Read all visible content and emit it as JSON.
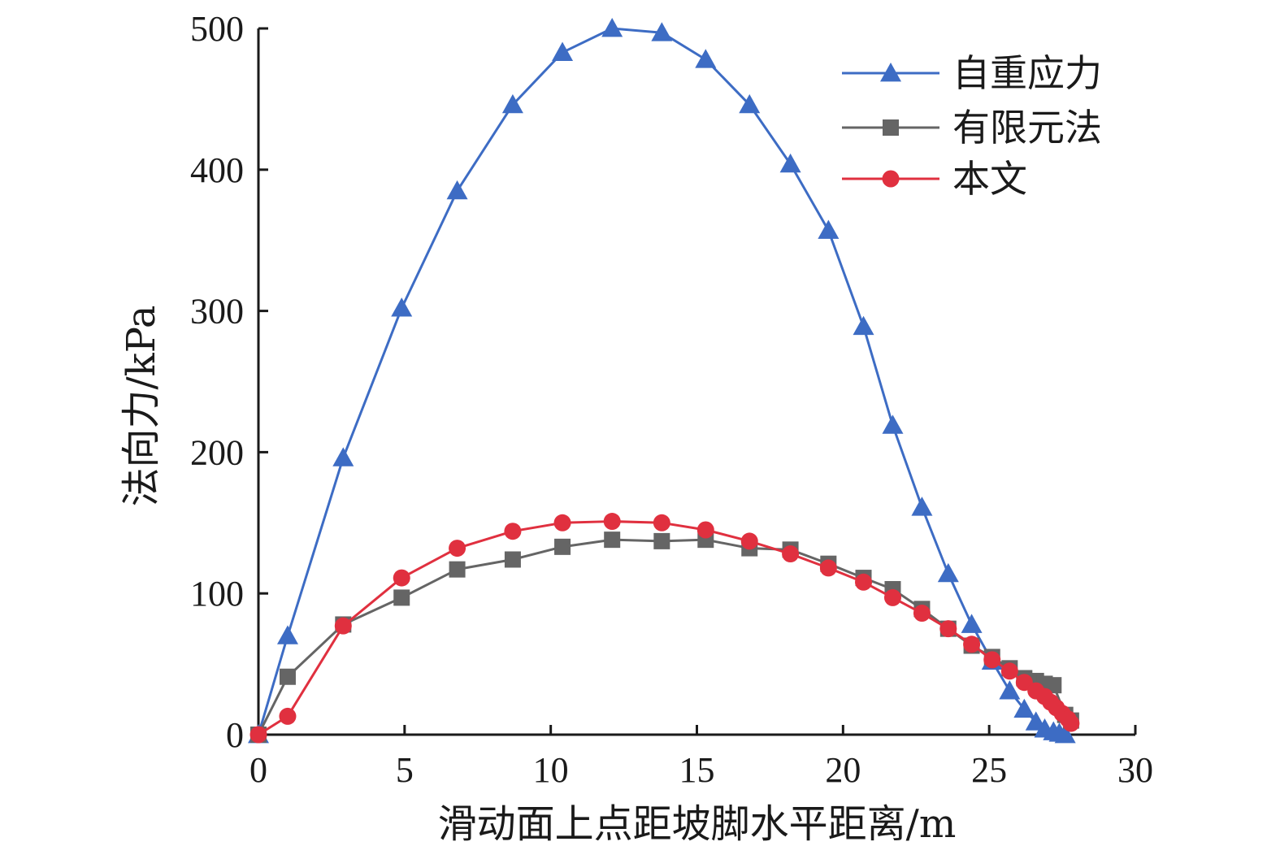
{
  "chart_data": {
    "type": "line",
    "xlabel": "滑动面上点距坡脚水平距离/m",
    "ylabel": "法向力/kPa",
    "xlim": [
      0,
      30
    ],
    "ylim": [
      0,
      500
    ],
    "xticks": [
      0,
      5,
      10,
      15,
      20,
      25,
      30
    ],
    "yticks": [
      0,
      100,
      200,
      300,
      400,
      500
    ],
    "xtick_labels": [
      "0",
      "5",
      "10",
      "15",
      "20",
      "25",
      "30"
    ],
    "ytick_labels": [
      "0",
      "100",
      "200",
      "300",
      "400",
      "500"
    ],
    "grid": false,
    "legend_position": "top-right",
    "series": [
      {
        "name": "自重应力",
        "color": "#3d6cc4",
        "marker": "triangle",
        "x": [
          0,
          1.0,
          2.9,
          4.9,
          6.8,
          8.7,
          10.4,
          12.1,
          13.8,
          15.3,
          16.8,
          18.2,
          19.5,
          20.7,
          21.7,
          22.7,
          23.6,
          24.4,
          25.1,
          25.7,
          26.2,
          26.6,
          26.9,
          27.2,
          27.4,
          27.6
        ],
        "y": [
          0,
          70,
          196,
          302,
          385,
          446,
          483,
          500,
          497,
          478,
          446,
          404,
          357,
          289,
          219,
          161,
          114,
          78,
          52,
          31,
          18,
          9,
          4,
          2,
          1,
          0
        ]
      },
      {
        "name": "有限元法",
        "color": "#656565",
        "marker": "square",
        "x": [
          0,
          1.0,
          2.9,
          4.9,
          6.8,
          8.7,
          10.4,
          12.1,
          13.8,
          15.3,
          16.8,
          18.2,
          19.5,
          20.7,
          21.7,
          22.7,
          23.6,
          24.4,
          25.1,
          25.7,
          26.2,
          26.6,
          26.9,
          27.2,
          27.6,
          27.8
        ],
        "y": [
          0,
          41,
          78,
          97,
          117,
          124,
          133,
          138,
          137,
          138,
          132,
          131,
          121,
          111,
          103,
          89,
          75,
          63,
          55,
          47,
          40,
          38,
          36,
          35,
          14,
          10
        ]
      },
      {
        "name": "本文",
        "color": "#e0303f",
        "marker": "circle",
        "x": [
          0,
          1.0,
          2.9,
          4.9,
          6.8,
          8.7,
          10.4,
          12.1,
          13.8,
          15.3,
          16.8,
          18.2,
          19.5,
          20.7,
          21.7,
          22.7,
          23.6,
          24.4,
          25.1,
          25.7,
          26.2,
          26.6,
          26.9,
          27.1,
          27.3,
          27.5,
          27.7,
          27.8
        ],
        "y": [
          0,
          13,
          77,
          111,
          132,
          144,
          150,
          151,
          150,
          145,
          137,
          128,
          118,
          108,
          97,
          86,
          75,
          64,
          53,
          45,
          37,
          31,
          27,
          23,
          19,
          15,
          11,
          8
        ]
      }
    ]
  }
}
